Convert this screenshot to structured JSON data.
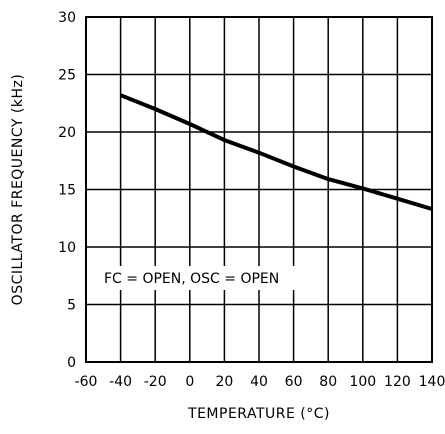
{
  "chart_data": {
    "type": "line",
    "title": "",
    "xlabel": "TEMPERATURE (°C)",
    "ylabel": "OSCILLATOR FREQUENCY (kHz)",
    "xlim": [
      -60,
      140
    ],
    "ylim": [
      0,
      30
    ],
    "x_ticks": [
      -60,
      -40,
      -20,
      0,
      20,
      40,
      60,
      80,
      100,
      120,
      140
    ],
    "y_ticks": [
      0,
      5,
      10,
      15,
      20,
      25,
      30
    ],
    "x_tick_labels": [
      "-60",
      "-40",
      "-20",
      "0",
      "20",
      "40",
      "60",
      "80",
      "100",
      "120",
      "140"
    ],
    "y_tick_labels": [
      "0",
      "5",
      "10",
      "15",
      "20",
      "25",
      "30"
    ],
    "grid": true,
    "annotation": "FC = OPEN, OSC = OPEN",
    "series": [
      {
        "x": [
          -40,
          -20,
          0,
          20,
          40,
          60,
          80,
          100,
          120,
          140
        ],
        "values": [
          23.2,
          22.0,
          20.7,
          19.3,
          18.2,
          17.0,
          15.9,
          15.1,
          14.2,
          13.3
        ]
      }
    ]
  }
}
